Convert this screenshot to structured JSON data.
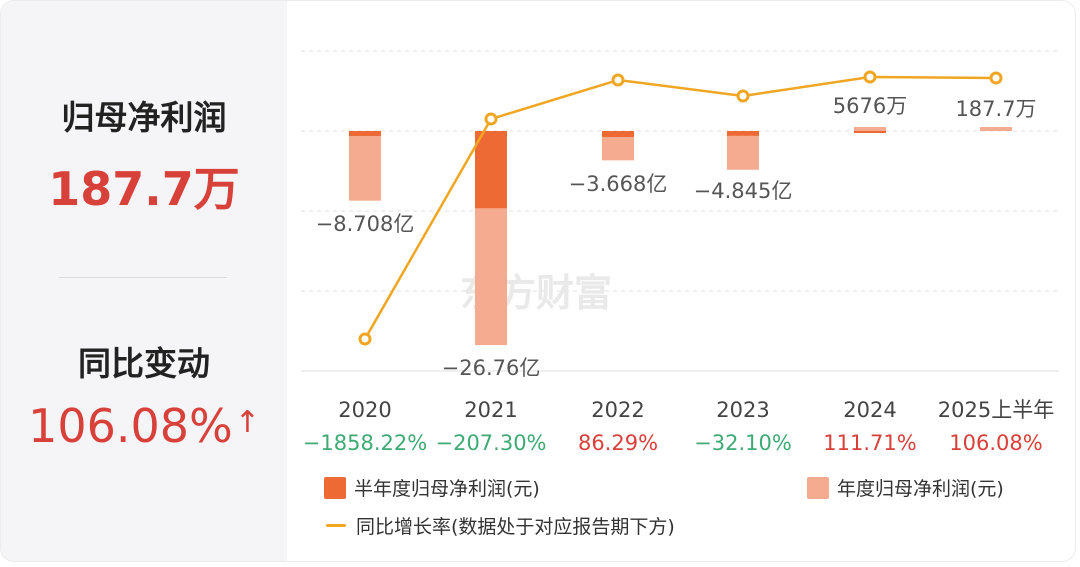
{
  "left": {
    "net_profit_label": "归母净利润",
    "net_profit_value": "187.7万",
    "yoy_label": "同比变动",
    "yoy_value": "106.08%",
    "yoy_arrow": "↑"
  },
  "legend": {
    "half_year": "半年度归母净利润(元)",
    "annual": "年度归母净利润(元)",
    "growth": "同比增长率(数据处于对应报告期下方)"
  },
  "watermark": "东方财富",
  "colors": {
    "half_year_bar": "#ee6a35",
    "annual_bar": "#f4ab8f",
    "growth_line": "#f0a623",
    "negative_text": "#3faa74",
    "positive_text": "#d8403a"
  },
  "chart_data": {
    "type": "bar",
    "categories": [
      "2020",
      "2021",
      "2022",
      "2023",
      "2024",
      "2025上半年"
    ],
    "series": [
      {
        "name": "半年度归母净利润(元)",
        "values": [
          -0.62,
          -9.65,
          -0.75,
          -0.6,
          null,
          null
        ]
      },
      {
        "name": "年度归母净利润(元)",
        "values": [
          -8.708,
          -26.76,
          -3.668,
          -4.845,
          0.5676,
          0.01877
        ],
        "labels": [
          "−8.708亿",
          "−26.76亿",
          "−3.668亿",
          "−4.845亿",
          "5676万",
          "187.7万"
        ]
      },
      {
        "name": "同比增长率(数据处于对应报告期下方)",
        "type": "line",
        "values": [
          -1858.22,
          -207.3,
          86.29,
          -32.1,
          111.71,
          106.08
        ],
        "labels": [
          "−1858.22%",
          "−207.30%",
          "86.29%",
          "−32.10%",
          "111.71%",
          "106.08%"
        ]
      }
    ],
    "value_unit": "亿",
    "legend_position": "bottom",
    "grid": true
  }
}
